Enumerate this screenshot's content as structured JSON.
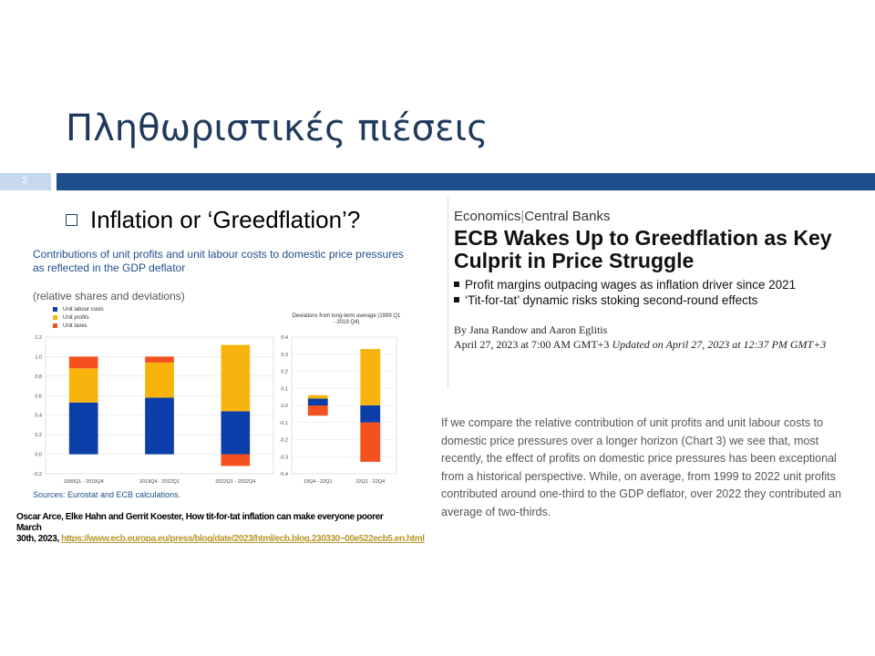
{
  "slide": {
    "title": "Πληθωριστικές πιέσεις",
    "number": "2",
    "bullet": "Inflation or ‘Greedflation’?"
  },
  "chart_caption": "Contributions of unit profits and unit labour costs to domestic price pressures as reflected in the GDP deflator",
  "chart_subtitle": "(relative shares and deviations)",
  "chart_source": "Sources: Eurostat and ECB calculations.",
  "colors": {
    "labour": "#0b3ea8",
    "profits": "#f8b30c",
    "taxes": "#f4511e",
    "title": "#1f3a5c",
    "bar": "#1f4e8c"
  },
  "chart_data": [
    {
      "type": "bar",
      "stacked": true,
      "categories": [
        "1999Q1 - 2019Q4",
        "2019Q4 - 2022Q1",
        "2022Q1 - 2022Q4"
      ],
      "series": [
        {
          "name": "Unit labour costs",
          "values": [
            0.53,
            0.58,
            0.44
          ]
        },
        {
          "name": "Unit profits",
          "values": [
            0.35,
            0.36,
            0.68
          ]
        },
        {
          "name": "Unit taxes",
          "values": [
            0.12,
            0.06,
            -0.12
          ]
        }
      ],
      "ylim": [
        -0.2,
        1.2
      ],
      "yticks": [
        "1.2",
        "1.0",
        "0.8",
        "0.6",
        "0.4",
        "0.2",
        "0.0",
        "-0.2"
      ],
      "legend": "top-left",
      "grid": true
    },
    {
      "type": "bar",
      "stacked": true,
      "title": "Deviations from long-term average (1999 Q1 - 2019 Q4)",
      "categories": [
        "19Q4 - 22Q1",
        "22Q1 - 22Q4"
      ],
      "series": [
        {
          "name": "Unit labour costs",
          "values": [
            0.04,
            -0.1
          ]
        },
        {
          "name": "Unit profits",
          "values": [
            0.02,
            0.33
          ]
        },
        {
          "name": "Unit taxes",
          "values": [
            -0.06,
            -0.23
          ]
        }
      ],
      "ylim": [
        -0.4,
        0.4
      ],
      "yticks": [
        "0.4",
        "0.3",
        "0.2",
        "0.1",
        "0.0",
        "-0.1",
        "-0.2",
        "-0.3",
        "-0.4"
      ],
      "grid": true
    }
  ],
  "reference": {
    "authors": "Oscar Arce, Elke Hahn and Gerrit Koester,",
    "article": " How tit-for-tat inflation can make everyone poorer",
    "date_line1": "March",
    "date_line2": "30th, 2023,",
    "url": "https://www.ecb.europa.eu/press/blog/date/2023/html/ecb.blog.230330~00e522ecb5.en.html"
  },
  "article": {
    "category": "Economics",
    "subcategory": "Central Banks",
    "headline": "ECB Wakes Up to Greedflation as Key Culprit in Price Struggle",
    "bullets": [
      "Profit margins outpacing wages as inflation driver since 2021",
      "‘Tit-for-tat’ dynamic risks stoking second-round effects"
    ],
    "byline": "By Jana Randow and Aaron Eglitis",
    "published": "April 27, 2023 at 7:00 AM GMT+3",
    "updated": "Updated on April 27, 2023 at 12:37 PM GMT+3"
  },
  "quote": "If we compare the relative contribution of unit profits and unit labour costs to domestic price pressures over a longer horizon (Chart 3) we see that, most recently, the effect of profits on domestic price pressures has been exceptional from a historical perspective. While, on average, from 1999 to 2022 unit profits contributed around one-third to the GDP deflator, over 2022 they contributed an average of two-thirds."
}
